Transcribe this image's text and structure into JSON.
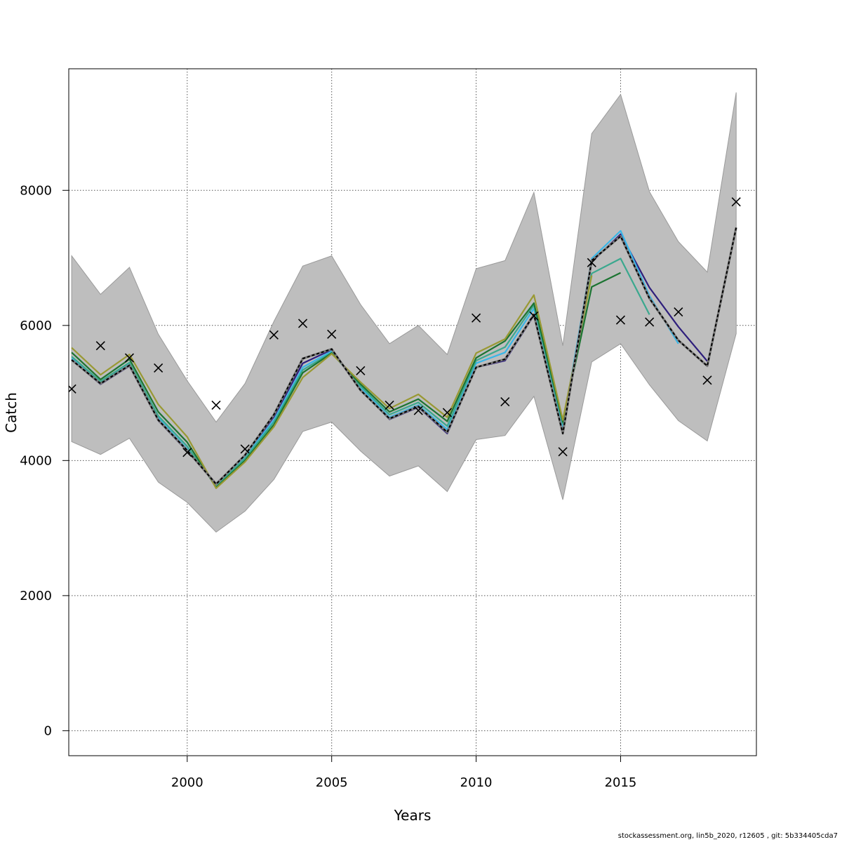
{
  "chart_data": {
    "type": "line",
    "title": "",
    "xlabel": "Years",
    "ylabel": "Catch",
    "xlim": [
      1995.9,
      2019.7
    ],
    "ylim": [
      -370,
      9800
    ],
    "x_ticks": [
      2000,
      2005,
      2010,
      2015
    ],
    "y_ticks": [
      0,
      2000,
      4000,
      6000,
      8000
    ],
    "grid": true,
    "colors": {
      "band": "#bebebe",
      "band_edge": "#9a9a9a",
      "observed": "#000000"
    },
    "band": {
      "x": [
        1996,
        1997,
        1998,
        1999,
        2000,
        2001,
        2002,
        2003,
        2004,
        2005,
        2006,
        2007,
        2008,
        2009,
        2010,
        2011,
        2012,
        2013,
        2014,
        2015,
        2016,
        2017,
        2018,
        2019
      ],
      "lower": [
        4280,
        4090,
        4330,
        3680,
        3380,
        2940,
        3250,
        3720,
        4430,
        4570,
        4140,
        3770,
        3920,
        3540,
        4310,
        4370,
        4950,
        3420,
        5460,
        5730,
        5120,
        4590,
        4290,
        5880
      ],
      "upper": [
        7030,
        6460,
        6860,
        5870,
        5180,
        4570,
        5140,
        6060,
        6880,
        7030,
        6310,
        5730,
        6000,
        5570,
        6840,
        6960,
        7970,
        5700,
        8840,
        9420,
        7980,
        7240,
        6790,
        9450
      ]
    },
    "observed": {
      "x": [
        1996,
        1997,
        1998,
        1999,
        2000,
        2001,
        2002,
        2003,
        2004,
        2005,
        2006,
        2007,
        2008,
        2009,
        2010,
        2011,
        2012,
        2013,
        2014,
        2015,
        2016,
        2017,
        2018,
        2019
      ],
      "values": [
        5060,
        5700,
        5520,
        5370,
        4120,
        4820,
        4170,
        5860,
        6030,
        5870,
        5330,
        4820,
        4740,
        4710,
        6110,
        4870,
        6140,
        4130,
        6930,
        6080,
        6050,
        6200,
        5190,
        7830
      ]
    },
    "series": [
      {
        "color": "#2e1e7c",
        "x": [
          1996,
          1997,
          1998,
          1999,
          2000,
          2001,
          2002,
          2003,
          2004,
          2005,
          2006,
          2007,
          2008,
          2009,
          2010,
          2011,
          2012,
          2013,
          2014,
          2015,
          2016,
          2017,
          2018
        ],
        "values": [
          5490,
          5130,
          5400,
          4590,
          4140,
          3660,
          4070,
          4650,
          5440,
          5640,
          5050,
          4610,
          4790,
          4400,
          5380,
          5480,
          6150,
          4440,
          6940,
          7350,
          6560,
          5980,
          5470
        ]
      },
      {
        "color": "#38b6e8",
        "x": [
          1996,
          1997,
          1998,
          1999,
          2000,
          2001,
          2002,
          2003,
          2004,
          2005,
          2006,
          2007,
          2008,
          2009,
          2010,
          2011,
          2012,
          2013,
          2014,
          2015,
          2016,
          2017
        ],
        "values": [
          5510,
          5150,
          5420,
          4630,
          4170,
          3640,
          4050,
          4600,
          5380,
          5620,
          5080,
          4640,
          4820,
          4460,
          5440,
          5600,
          6250,
          4500,
          6990,
          7400,
          6440,
          5730
        ]
      },
      {
        "color": "#3aa88e",
        "x": [
          1996,
          1997,
          1998,
          1999,
          2000,
          2001,
          2002,
          2003,
          2004,
          2005,
          2006,
          2007,
          2008,
          2009,
          2010,
          2011,
          2012,
          2013,
          2014,
          2015,
          2016
        ],
        "values": [
          5540,
          5170,
          5450,
          4660,
          4210,
          3620,
          4030,
          4570,
          5340,
          5600,
          5100,
          4680,
          4860,
          4510,
          5480,
          5680,
          6300,
          4540,
          6770,
          6990,
          6160
        ]
      },
      {
        "color": "#1c7432",
        "x": [
          1996,
          1997,
          1998,
          1999,
          2000,
          2001,
          2002,
          2003,
          2004,
          2005,
          2006,
          2007,
          2008,
          2009,
          2010,
          2011,
          2012,
          2013,
          2014,
          2015
        ],
        "values": [
          5600,
          5200,
          5500,
          4720,
          4270,
          3600,
          4000,
          4530,
          5300,
          5590,
          5130,
          4720,
          4910,
          4580,
          5520,
          5770,
          6330,
          4570,
          6570,
          6780
        ]
      },
      {
        "color": "#999933",
        "x": [
          1996,
          1997,
          1998,
          1999,
          2000,
          2001,
          2002,
          2003,
          2004,
          2005,
          2006,
          2007,
          2008,
          2009,
          2010,
          2011,
          2012,
          2013,
          2014
        ],
        "values": [
          5670,
          5270,
          5570,
          4830,
          4350,
          3590,
          3980,
          4500,
          5230,
          5580,
          5160,
          4770,
          4980,
          4640,
          5590,
          5800,
          6450,
          4600,
          6740
        ]
      },
      {
        "color": "#000000",
        "dashed": true,
        "x": [
          1996,
          1997,
          1998,
          1999,
          2000,
          2001,
          2002,
          2003,
          2004,
          2005,
          2006,
          2007,
          2008,
          2009,
          2010,
          2011,
          2012,
          2013,
          2014,
          2015,
          2016,
          2017,
          2018,
          2019
        ],
        "values": [
          5490,
          5140,
          5410,
          4600,
          4150,
          3650,
          4080,
          4680,
          5510,
          5650,
          5040,
          4620,
          4800,
          4420,
          5380,
          5500,
          6160,
          4400,
          6960,
          7320,
          6400,
          5780,
          5400,
          7450
        ]
      }
    ]
  },
  "footer": "stockassessment.org, lin5b_2020, r12605 , git: 5b334405cda7"
}
